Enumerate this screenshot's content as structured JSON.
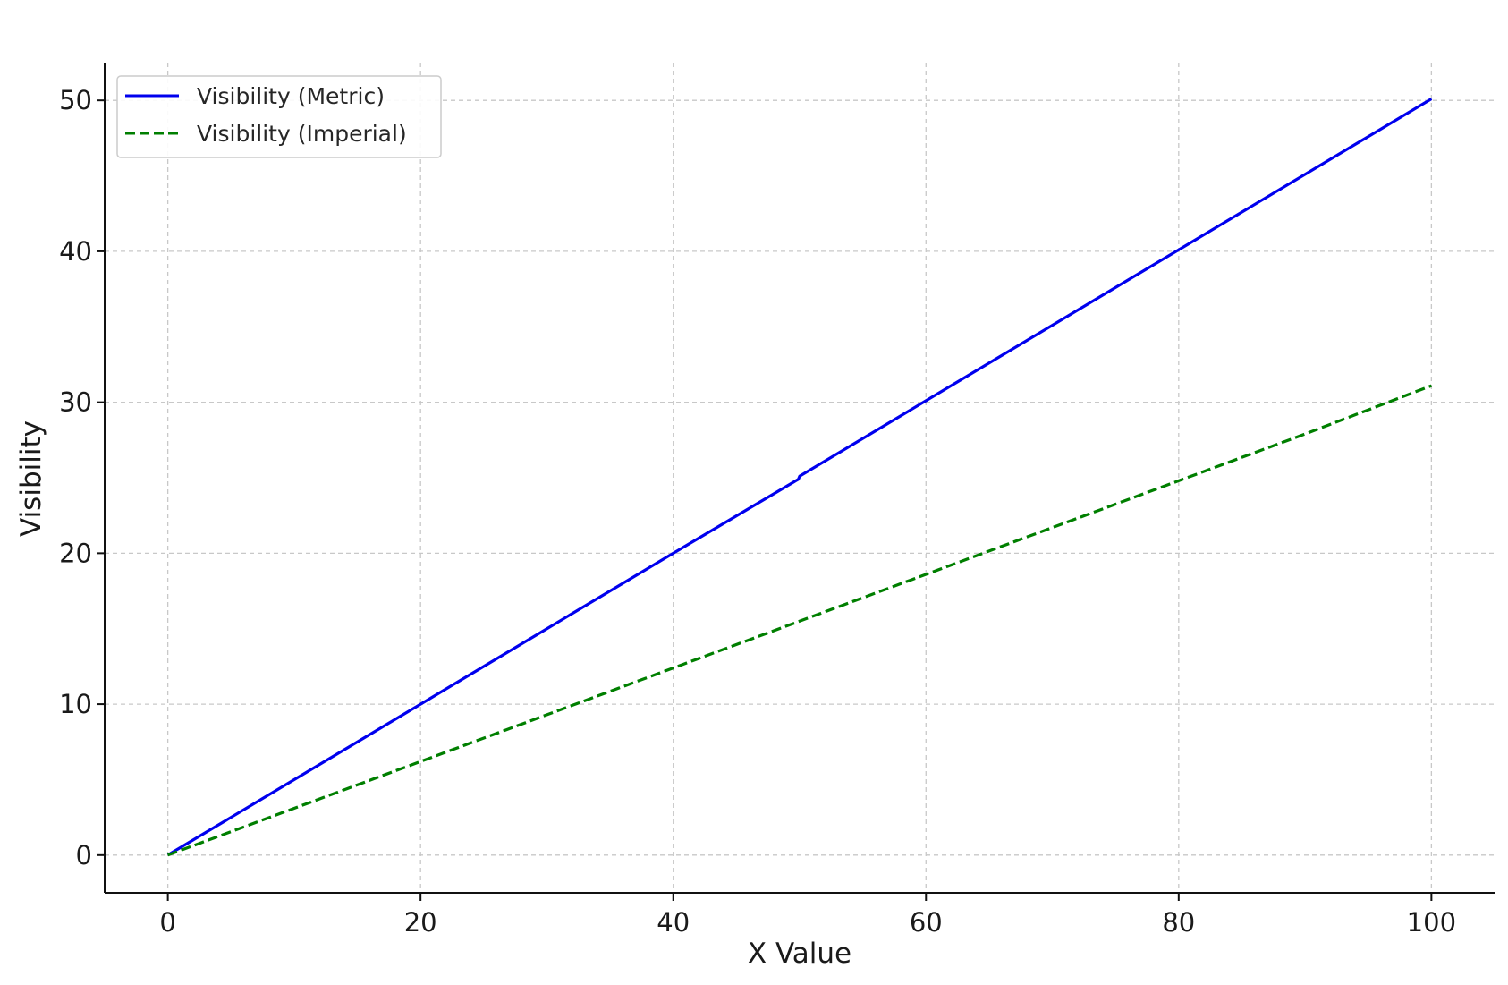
{
  "chart_data": {
    "type": "line",
    "title": "",
    "xlabel": "X Value",
    "ylabel": "Visibility",
    "xlim": [
      -5,
      105
    ],
    "ylim": [
      -2.5,
      52.5
    ],
    "xticks": [
      0,
      20,
      40,
      60,
      80,
      100
    ],
    "yticks": [
      0,
      10,
      20,
      30,
      40,
      50
    ],
    "xtick_labels": [
      "0",
      "20",
      "40",
      "60",
      "80",
      "100"
    ],
    "ytick_labels": [
      "0",
      "10",
      "20",
      "30",
      "40",
      "50"
    ],
    "grid": true,
    "legend_position": "top-left",
    "series": [
      {
        "name": "Visibility (Metric)",
        "color": "#0000ee",
        "line_style": "solid",
        "x": [
          0,
          10,
          20,
          30,
          40,
          49.9,
          50,
          60,
          70,
          80,
          90,
          100
        ],
        "y": [
          0,
          5,
          10,
          15,
          20,
          24.9,
          25.1,
          30.1,
          35.1,
          40.1,
          45.1,
          50.1
        ]
      },
      {
        "name": "Visibility (Imperial)",
        "color": "#007f00",
        "line_style": "dashed",
        "x": [
          0,
          10,
          20,
          30,
          40,
          50,
          60,
          70,
          80,
          90,
          100
        ],
        "y": [
          0,
          3.1,
          6.2,
          9.3,
          12.4,
          15.5,
          18.6,
          21.7,
          24.8,
          27.9,
          31.1
        ]
      }
    ]
  }
}
